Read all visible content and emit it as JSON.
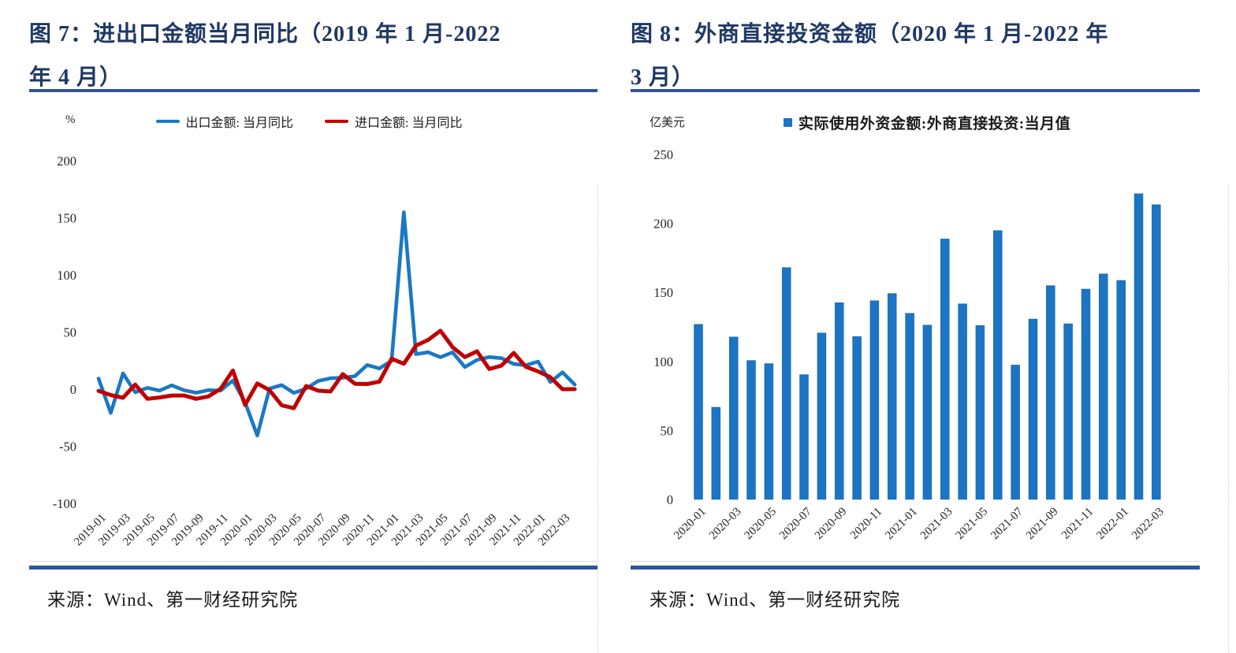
{
  "page": {
    "background": "#ffffff",
    "title_color": "#1F3864",
    "rule_color": "#2F5597",
    "text_color": "#262626"
  },
  "figures": [
    {
      "title_line1": "图 7：进出口金额当月同比（2019 年 1 月-2022",
      "title_line2": "年 4 月）",
      "unit": "%",
      "source": "来源：Wind、第一财经研究院"
    },
    {
      "title_line1": "图 8：外商直接投资金额（2020 年 1 月-2022 年",
      "title_line2": "3 月）",
      "unit": "亿美元",
      "source": "来源：Wind、第一财经研究院"
    }
  ],
  "chart_data": [
    {
      "type": "line",
      "title": "图 7：进出口金额当月同比（2019 年 1 月-2022 年 4 月）",
      "ylabel": "%",
      "ylim": [
        -100,
        200
      ],
      "yticks": [
        200,
        150,
        100,
        50,
        0,
        -50,
        -100
      ],
      "grid": false,
      "legend_position": "top",
      "x_tick_step": 2,
      "x": [
        "2019-01",
        "2019-02",
        "2019-03",
        "2019-04",
        "2019-05",
        "2019-06",
        "2019-07",
        "2019-08",
        "2019-09",
        "2019-10",
        "2019-11",
        "2019-12",
        "2020-01",
        "2020-02",
        "2020-03",
        "2020-04",
        "2020-05",
        "2020-06",
        "2020-07",
        "2020-08",
        "2020-09",
        "2020-10",
        "2020-11",
        "2020-12",
        "2021-01",
        "2021-02",
        "2021-03",
        "2021-04",
        "2021-05",
        "2021-06",
        "2021-07",
        "2021-08",
        "2021-09",
        "2021-10",
        "2021-11",
        "2021-12",
        "2022-01",
        "2022-02",
        "2022-03",
        "2022-04"
      ],
      "series": [
        {
          "name": "出口金额: 当月同比",
          "color": "#1B78C4",
          "values": [
            9.3,
            -20.8,
            13.8,
            -2.7,
            1.1,
            -1.3,
            3.3,
            -1.0,
            -3.2,
            -0.9,
            -1.3,
            7.6,
            -11.5,
            -40.6,
            0.5,
            3.5,
            -3.3,
            0.5,
            7.2,
            9.5,
            9.9,
            11.4,
            21.1,
            18.1,
            24.8,
            154.9,
            30.6,
            32.3,
            27.9,
            32.2,
            19.3,
            25.6,
            28.1,
            27.1,
            22.0,
            20.9,
            24.1,
            6.2,
            14.7,
            3.9
          ]
        },
        {
          "name": "进口金额: 当月同比",
          "color": "#C00000",
          "values": [
            -1.5,
            -5.2,
            -7.6,
            4.0,
            -8.5,
            -7.3,
            -5.6,
            -5.6,
            -8.5,
            -6.4,
            0.3,
            16.3,
            -13.8,
            5.0,
            -0.9,
            -14.2,
            -16.7,
            2.7,
            -1.4,
            -2.1,
            13.2,
            4.7,
            4.5,
            6.5,
            26.6,
            22.2,
            38.1,
            43.1,
            51.1,
            36.7,
            28.1,
            33.1,
            17.6,
            20.6,
            31.7,
            19.5,
            15.5,
            10.4,
            -0.1,
            0.0
          ]
        }
      ]
    },
    {
      "type": "bar",
      "title": "图 8：外商直接投资金额（2020 年 1 月-2022 年 3 月）",
      "ylabel": "亿美元",
      "ylim": [
        0,
        250
      ],
      "yticks": [
        250,
        200,
        150,
        100,
        50,
        0
      ],
      "grid": false,
      "legend_position": "top",
      "x_tick_step": 2,
      "series_name": "实际使用外资金额:外商直接投资:当月值",
      "bar_color": "#1B74C4",
      "categories": [
        "2020-01",
        "2020-02",
        "2020-03",
        "2020-04",
        "2020-05",
        "2020-06",
        "2020-07",
        "2020-08",
        "2020-09",
        "2020-10",
        "2020-11",
        "2020-12",
        "2021-01",
        "2021-02",
        "2021-03",
        "2021-04",
        "2021-05",
        "2021-06",
        "2021-07",
        "2021-08",
        "2021-09",
        "2021-10",
        "2021-11",
        "2021-12",
        "2022-01",
        "2022-02",
        "2022-03"
      ],
      "values": [
        126.8,
        66.8,
        117.7,
        100.7,
        98.4,
        168.0,
        90.4,
        120.6,
        142.5,
        118.0,
        144.0,
        149.2,
        134.9,
        126.3,
        188.7,
        141.7,
        126.0,
        194.8,
        97.4,
        130.7,
        154.9,
        127.3,
        152.4,
        163.4,
        158.7,
        221.5,
        213.5
      ]
    }
  ]
}
